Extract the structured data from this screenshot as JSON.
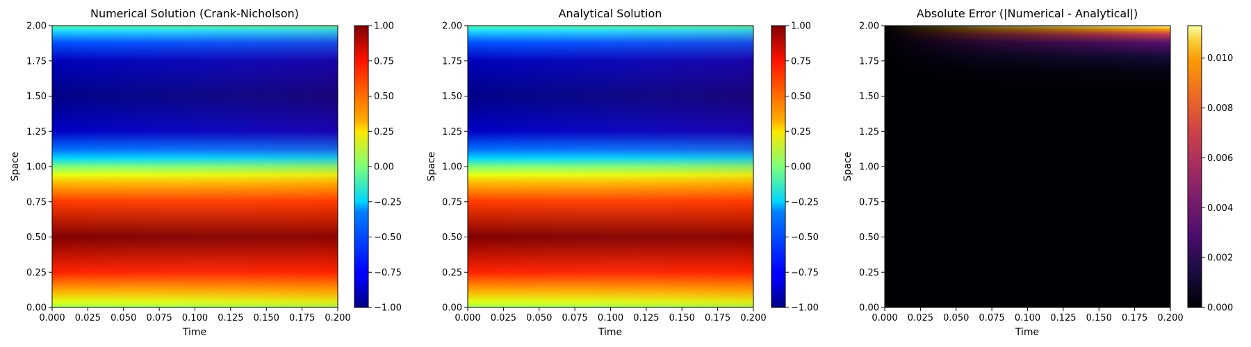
{
  "chart_data": [
    {
      "type": "heatmap",
      "title": "Numerical Solution (Crank-Nicholson)",
      "xlabel": "Time",
      "ylabel": "Space",
      "xlim": [
        0,
        0.2
      ],
      "ylim": [
        0,
        2
      ],
      "x_ticks": [
        "0.000",
        "0.025",
        "0.050",
        "0.075",
        "0.100",
        "0.125",
        "0.150",
        "0.175",
        "0.200"
      ],
      "y_ticks": [
        "0.00",
        "0.25",
        "0.50",
        "0.75",
        "1.00",
        "1.25",
        "1.50",
        "1.75",
        "2.00"
      ],
      "colormap": "jet",
      "colorbar": {
        "range": [
          -1,
          1
        ],
        "ticks": [
          "−1.00",
          "−0.75",
          "−0.50",
          "−0.25",
          "0.00",
          "0.25",
          "0.50",
          "0.75",
          "1.00"
        ]
      },
      "field": "sin(pi*x) with slow decay over time"
    },
    {
      "type": "heatmap",
      "title": "Analytical Solution",
      "xlabel": "Time",
      "ylabel": "Space",
      "xlim": [
        0,
        0.2
      ],
      "ylim": [
        0,
        2
      ],
      "x_ticks": [
        "0.000",
        "0.025",
        "0.050",
        "0.075",
        "0.100",
        "0.125",
        "0.150",
        "0.175",
        "0.200"
      ],
      "y_ticks": [
        "0.00",
        "0.25",
        "0.50",
        "0.75",
        "1.00",
        "1.25",
        "1.50",
        "1.75",
        "2.00"
      ],
      "colormap": "jet",
      "colorbar": {
        "range": [
          -1,
          1
        ],
        "ticks": [
          "−1.00",
          "−0.75",
          "−0.50",
          "−0.25",
          "0.00",
          "0.25",
          "0.50",
          "0.75",
          "1.00"
        ]
      },
      "field": "sin(pi*x) with slow decay over time"
    },
    {
      "type": "heatmap",
      "title": "Absolute Error (|Numerical - Analytical|)",
      "xlabel": "Time",
      "ylabel": "Space",
      "xlim": [
        0,
        0.2
      ],
      "ylim": [
        0,
        2
      ],
      "x_ticks": [
        "0.000",
        "0.025",
        "0.050",
        "0.075",
        "0.100",
        "0.125",
        "0.150",
        "0.175",
        "0.200"
      ],
      "y_ticks": [
        "0.00",
        "0.25",
        "0.50",
        "0.75",
        "1.00",
        "1.25",
        "1.50",
        "1.75",
        "2.00"
      ],
      "colormap": "inferno",
      "colorbar": {
        "range": [
          0,
          0.0113
        ],
        "ticks": [
          "0.000",
          "0.002",
          "0.004",
          "0.006",
          "0.008",
          "0.010"
        ]
      },
      "field": "error near zero, growing toward x=2.0 and later times (max ≈0.011)"
    }
  ]
}
